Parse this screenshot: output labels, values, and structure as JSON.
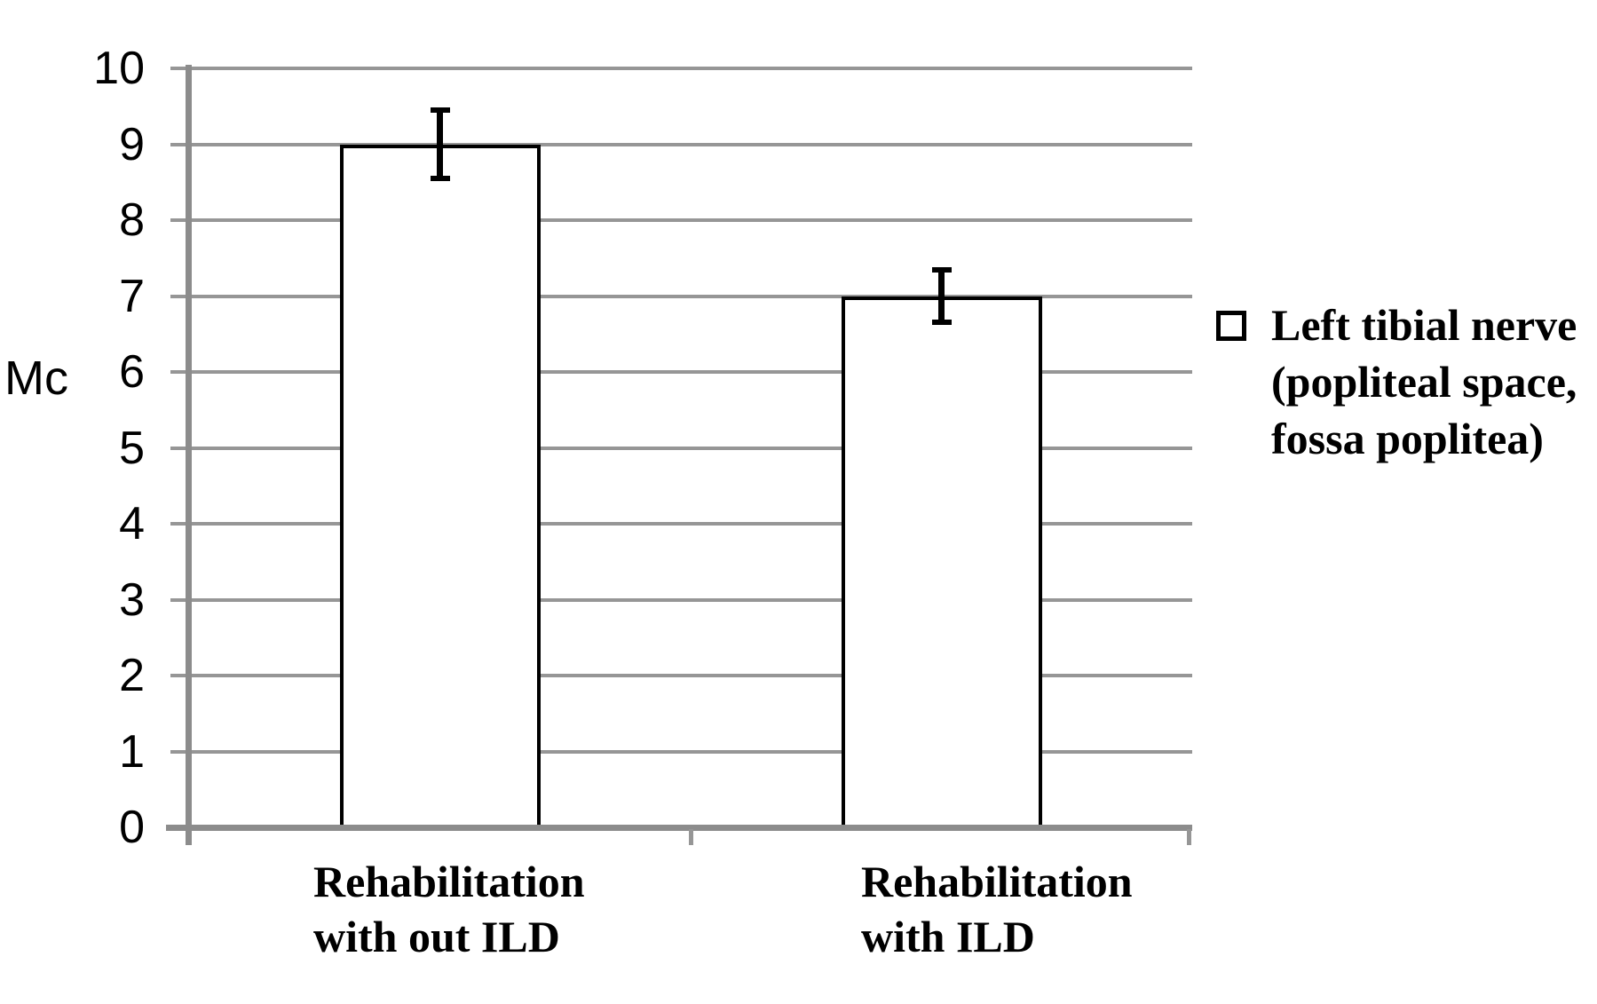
{
  "chart_data": {
    "type": "bar",
    "title": "",
    "xlabel": "",
    "ylabel": "Mc",
    "categories": [
      "Rehabilitation with out ILD",
      "Rehabilitation with ILD"
    ],
    "category_lines": [
      [
        "Rehabilitation",
        "with out ILD"
      ],
      [
        "Rehabilitation",
        "with ILD"
      ]
    ],
    "series": [
      {
        "name": "Left tibial nerve (popliteal space, fossa poplitea)",
        "values": [
          9,
          7
        ],
        "error_bars": [
          0.45,
          0.35
        ]
      }
    ],
    "ylim": [
      0,
      10
    ],
    "yticks": [
      0,
      1,
      2,
      3,
      4,
      5,
      6,
      7,
      8,
      9,
      10
    ],
    "grid": "horizontal",
    "legend_position": "right",
    "legend_lines": [
      "Left tibial nerve",
      "(popliteal space,",
      "fossa poplitea)"
    ]
  },
  "colors": {
    "background": "#ffffff",
    "grid": "#969696",
    "axis": "#8c8c8c",
    "bar_fill": "#ffffff",
    "bar_border": "#000000",
    "error_bar": "#000000",
    "text": "#000000"
  }
}
